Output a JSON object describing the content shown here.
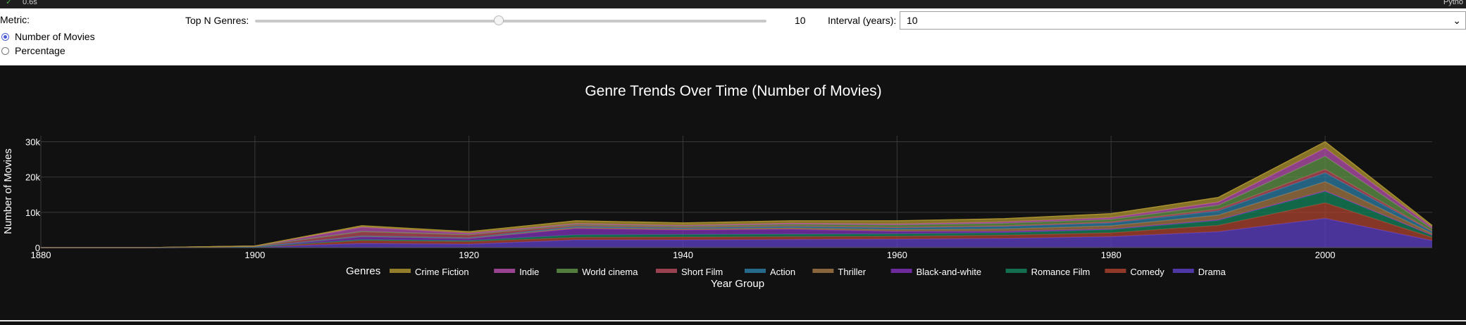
{
  "status_bar": {
    "check_glyph": "✓",
    "duration": "0.6s",
    "kernel": "Pytho"
  },
  "controls": {
    "metric_label": "Metric:",
    "metric_options": [
      {
        "label": "Number of Movies",
        "selected": true
      },
      {
        "label": "Percentage",
        "selected": false
      }
    ],
    "top_n_label": "Top N Genres:",
    "top_n_value": "10",
    "top_n_fraction": 0.476,
    "interval_label": "Interval (years):",
    "interval_value": "10"
  },
  "chart_data": {
    "type": "area",
    "stacked": true,
    "title": "Genre Trends Over Time (Number of Movies)",
    "xlabel": "Year Group",
    "ylabel": "Number of Movies",
    "xlim": [
      1880,
      2010
    ],
    "ylim": [
      0,
      30500
    ],
    "x_ticks": [
      "1880",
      "1900",
      "1920",
      "1940",
      "1960",
      "1980",
      "2000"
    ],
    "y_ticks": [
      {
        "value": 0,
        "label": "0"
      },
      {
        "value": 10000,
        "label": "10k"
      },
      {
        "value": 20000,
        "label": "20k"
      },
      {
        "value": 30000,
        "label": "30k"
      }
    ],
    "grid": true,
    "legend_title": "Genres",
    "legend_position": "bottom",
    "x": [
      1880,
      1890,
      1900,
      1910,
      1920,
      1930,
      1940,
      1950,
      1960,
      1970,
      1980,
      1990,
      2000,
      2010
    ],
    "series": [
      {
        "name": "Drama",
        "color": "#5b3fc1",
        "values": [
          0,
          0,
          100,
          1200,
          1000,
          2200,
          2200,
          2300,
          2400,
          2600,
          3100,
          4500,
          8300,
          2000
        ]
      },
      {
        "name": "Comedy",
        "color": "#a8412e",
        "values": [
          0,
          0,
          50,
          800,
          700,
          700,
          800,
          800,
          800,
          900,
          1100,
          1800,
          4400,
          900
        ]
      },
      {
        "name": "Romance Film",
        "color": "#14805a",
        "values": [
          0,
          0,
          20,
          300,
          300,
          700,
          700,
          700,
          700,
          700,
          900,
          1400,
          3200,
          600
        ]
      },
      {
        "name": "Black-and-white",
        "color": "#7c2fb4",
        "values": [
          0,
          0,
          30,
          800,
          600,
          1800,
          1300,
          1400,
          700,
          400,
          200,
          200,
          200,
          50
        ]
      },
      {
        "name": "Thriller",
        "color": "#9e7445",
        "values": [
          0,
          0,
          10,
          100,
          100,
          300,
          300,
          400,
          500,
          700,
          900,
          1300,
          2600,
          500
        ]
      },
      {
        "name": "Action",
        "color": "#2a7aa0",
        "values": [
          0,
          0,
          10,
          100,
          100,
          300,
          300,
          400,
          500,
          700,
          800,
          1200,
          2500,
          500
        ]
      },
      {
        "name": "Short Film",
        "color": "#b24a5a",
        "values": [
          0,
          0,
          200,
          1200,
          800,
          300,
          200,
          200,
          200,
          200,
          300,
          500,
          1000,
          200
        ]
      },
      {
        "name": "World cinema",
        "color": "#5e9146",
        "values": [
          0,
          0,
          10,
          100,
          100,
          300,
          300,
          400,
          600,
          700,
          700,
          1100,
          3700,
          600
        ]
      },
      {
        "name": "Indie",
        "color": "#b04ea8",
        "values": [
          0,
          0,
          10,
          1200,
          400,
          200,
          200,
          300,
          300,
          400,
          500,
          900,
          2300,
          500
        ]
      },
      {
        "name": "Crime Fiction",
        "color": "#a89030",
        "values": [
          0,
          0,
          10,
          400,
          400,
          800,
          700,
          700,
          900,
          900,
          1100,
          1300,
          1800,
          400
        ]
      }
    ]
  }
}
